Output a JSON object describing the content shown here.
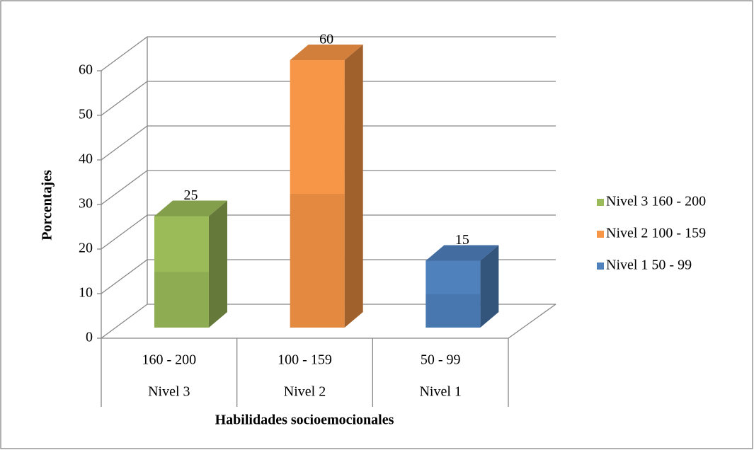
{
  "chart_data": {
    "type": "bar3d",
    "x_label": "Habilidades socioemocionales",
    "y_label": "Porcentajes",
    "categories": [
      "160 - 200",
      "100 - 159",
      "50 - 99"
    ],
    "category_groups": [
      "Nivel 3",
      "Nivel 2",
      "Nivel 1"
    ],
    "values": [
      25,
      60,
      15
    ],
    "colors": [
      "#9bbb59",
      "#f79646",
      "#4f81bd"
    ],
    "legend": [
      "Nivel 3 160 - 200",
      "Nivel 2 100 - 159",
      "Nivel 1 50 - 99"
    ],
    "ylim": [
      0,
      60
    ],
    "yticks": [
      0,
      10,
      20,
      30,
      40,
      50,
      60
    ],
    "grid": true
  }
}
